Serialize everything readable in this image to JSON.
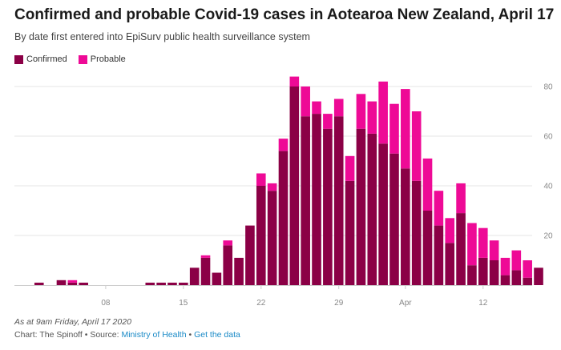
{
  "header": {
    "title": "Confirmed and probable Covid-19 cases in Aotearoa New Zealand, April 17",
    "subtitle": "By date first entered into EpiSurv public health surveillance system"
  },
  "footer": {
    "as_at": "As at 9am Friday, April 17 2020",
    "credit_prefix": "Chart: The Spinoff • Source: ",
    "source_link": "Ministry of Health",
    "separator": " • ",
    "data_link": "Get the data"
  },
  "colors": {
    "confirmed": "#8b0046",
    "probable": "#ee0a96",
    "grid": "#e6e6e6",
    "axis_text": "#888888"
  },
  "chart_data": {
    "type": "bar",
    "stacked": true,
    "x_tick_labels": [
      "08",
      "15",
      "22",
      "29",
      "Apr",
      "12"
    ],
    "x_tick_index": [
      7,
      14,
      21,
      28,
      34,
      41
    ],
    "y_ticks": [
      20,
      40,
      60,
      80
    ],
    "ylim": [
      0,
      85
    ],
    "grid": true,
    "y_axis_position": "right",
    "legend_position": "top-left",
    "series": [
      {
        "name": "Confirmed",
        "values": [
          0,
          1,
          0,
          2,
          1,
          1,
          0,
          0,
          0,
          0,
          0,
          1,
          1,
          1,
          1,
          7,
          11,
          5,
          16,
          11,
          24,
          40,
          38,
          54,
          80,
          68,
          69,
          63,
          68,
          42,
          63,
          61,
          57,
          53,
          47,
          42,
          30,
          24,
          17,
          29,
          8,
          11,
          10,
          4,
          6,
          3,
          7
        ]
      },
      {
        "name": "Probable",
        "values": [
          0,
          0,
          0,
          0,
          1,
          0,
          0,
          0,
          0,
          0,
          0,
          0,
          0,
          0,
          0,
          0,
          1,
          0,
          2,
          0,
          0,
          5,
          3,
          5,
          4,
          12,
          5,
          6,
          7,
          10,
          14,
          13,
          25,
          20,
          32,
          28,
          21,
          14,
          10,
          12,
          17,
          12,
          8,
          7,
          8,
          7,
          0
        ]
      }
    ]
  }
}
